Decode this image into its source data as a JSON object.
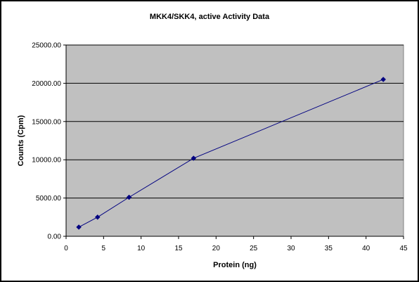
{
  "chart_data": {
    "type": "scatter",
    "title": "MKK4/SKK4, active Activity Data",
    "xlabel": "Protein (ng)",
    "ylabel": "Counts (Cpm)",
    "xlim": [
      0,
      45
    ],
    "ylim": [
      0,
      25000
    ],
    "x_ticks": [
      0,
      5,
      10,
      15,
      20,
      25,
      30,
      35,
      40,
      45
    ],
    "y_ticks": [
      0,
      5000,
      10000,
      15000,
      20000,
      25000
    ],
    "y_tick_labels": [
      "0.00",
      "5000.00",
      "10000.00",
      "15000.00",
      "20000.00",
      "25000.00"
    ],
    "x_tick_labels": [
      "0",
      "5",
      "10",
      "15",
      "20",
      "25",
      "30",
      "35",
      "40",
      "45"
    ],
    "series": [
      {
        "x": [
          1.7,
          4.2,
          8.4,
          17.0,
          42.3
        ],
        "y": [
          1200,
          2500,
          5100,
          10200,
          20500
        ],
        "color": "#000080",
        "marker": "diamond",
        "connected": true
      }
    ],
    "grid": "horizontal",
    "plot_background": "#c0c0c0",
    "legend": "none"
  }
}
